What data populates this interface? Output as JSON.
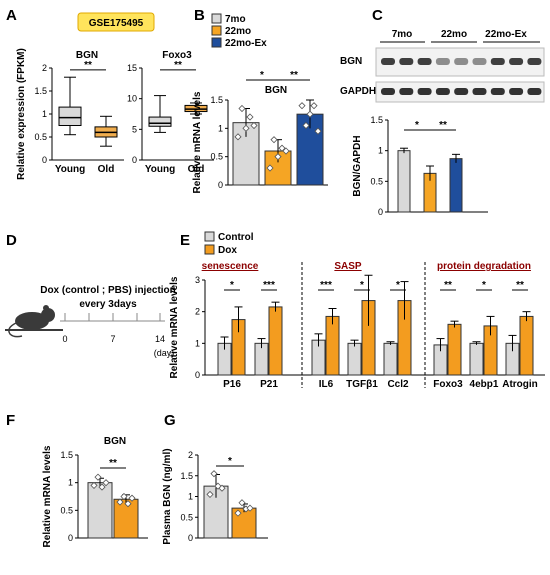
{
  "panels": {
    "A": "A",
    "B": "B",
    "C": "C",
    "D": "D",
    "E": "E",
    "F": "F",
    "G": "G"
  },
  "colors": {
    "young_box": "#d9d9d9",
    "old_box": "#f0ad4e",
    "mo7": "#d9d9d9",
    "mo22": "#f5a524",
    "ex": "#1f4e9c",
    "control": "#d9d9d9",
    "dox": "#f39c1f",
    "dataset_bg": "#ffe45c",
    "dataset_border": "#e0a800"
  },
  "chart_data": [
    {
      "panel": "A",
      "type": "box",
      "dataset": "GSE175495",
      "ylabel": "Relative expression (FPKM)",
      "subcharts": [
        {
          "title": "BGN",
          "categories": [
            "Young",
            "Old"
          ],
          "ylim": [
            0,
            2
          ],
          "yticks": [
            0,
            0.5,
            1,
            1.5,
            2
          ],
          "boxes": [
            {
              "min": 0.55,
              "q1": 0.75,
              "median": 0.92,
              "q3": 1.15,
              "max": 1.8
            },
            {
              "min": 0.3,
              "q1": 0.5,
              "median": 0.6,
              "q3": 0.72,
              "max": 0.95
            }
          ],
          "significance": "**"
        },
        {
          "title": "Foxo3",
          "categories": [
            "Young",
            "Old"
          ],
          "ylim": [
            0,
            15
          ],
          "yticks": [
            0,
            5,
            10,
            15
          ],
          "boxes": [
            {
              "min": 4.5,
              "q1": 5.5,
              "median": 6.0,
              "q3": 7.0,
              "max": 10.5
            },
            {
              "min": 7.5,
              "q1": 7.9,
              "median": 8.3,
              "q3": 8.9,
              "max": 9.3
            }
          ],
          "significance": "**"
        }
      ]
    },
    {
      "panel": "B",
      "type": "bar",
      "title": "BGN",
      "legend": [
        "7mo",
        "22mo",
        "22mo-Ex"
      ],
      "categories": [
        "7mo",
        "22mo",
        "22mo-Ex"
      ],
      "values": [
        1.1,
        0.6,
        1.25
      ],
      "errors": [
        0.25,
        0.2,
        0.25
      ],
      "points": [
        [
          0.85,
          1.35,
          1.0,
          1.2,
          1.05
        ],
        [
          0.3,
          0.8,
          0.5,
          0.65,
          0.6
        ],
        [
          1.4,
          1.05,
          1.25,
          1.4,
          0.95
        ]
      ],
      "ylabel": "Relative mRNA levels",
      "ylim": [
        0,
        1.5
      ],
      "yticks": [
        0,
        0.5,
        1,
        1.5
      ],
      "significance": [
        {
          "from": 0,
          "to": 1,
          "label": "*"
        },
        {
          "from": 1,
          "to": 2,
          "label": "**"
        }
      ]
    },
    {
      "panel": "C",
      "type": "bar",
      "blot_groups": [
        "7mo",
        "22mo",
        "22mo-Ex"
      ],
      "blot_rows": [
        "BGN",
        "GAPDH"
      ],
      "categories": [
        "7mo",
        "22mo",
        "22mo-Ex"
      ],
      "values": [
        1.0,
        0.63,
        0.87
      ],
      "errors": [
        0.04,
        0.12,
        0.07
      ],
      "ylabel": "BGN/GAPDH",
      "ylim": [
        0,
        1.5
      ],
      "yticks": [
        0,
        0.5,
        1,
        1.5
      ],
      "significance": [
        {
          "from": 0,
          "to": 1,
          "label": "*"
        },
        {
          "from": 1,
          "to": 2,
          "label": "**"
        }
      ]
    },
    {
      "panel": "D",
      "type": "timeline",
      "title_line1": "Dox (control ; PBS) injection",
      "title_line2": "every 3days",
      "ticks": [
        "0",
        "7",
        "14"
      ],
      "unit": "(day)"
    },
    {
      "panel": "E",
      "type": "bar",
      "legend": [
        "Control",
        "Dox"
      ],
      "groups": [
        {
          "label": "senescence",
          "genes": [
            "P16",
            "P21"
          ]
        },
        {
          "label": "SASP",
          "genes": [
            "IL6",
            "TGFβ1",
            "Ccl2"
          ]
        },
        {
          "label": "protein degradation",
          "genes": [
            "Foxo3",
            "4ebp1",
            "Atrogin"
          ]
        }
      ],
      "categories": [
        "P16",
        "P21",
        "IL6",
        "TGFβ1",
        "Ccl2",
        "Foxo3",
        "4ebp1",
        "Atrogin"
      ],
      "series": [
        {
          "name": "Control",
          "values": [
            1.0,
            1.0,
            1.1,
            1.0,
            1.0,
            0.95,
            1.0,
            1.0
          ],
          "errors": [
            0.2,
            0.15,
            0.2,
            0.1,
            0.05,
            0.2,
            0.05,
            0.25
          ]
        },
        {
          "name": "Dox",
          "values": [
            1.75,
            2.15,
            1.85,
            2.35,
            2.35,
            1.6,
            1.55,
            1.85
          ],
          "errors": [
            0.4,
            0.15,
            0.25,
            0.8,
            0.6,
            0.1,
            0.3,
            0.15
          ]
        }
      ],
      "significance": [
        "*",
        "***",
        "***",
        "*",
        "*",
        "**",
        "*",
        "**"
      ],
      "ylabel": "Relative mRNA levels",
      "ylim": [
        0,
        3
      ],
      "yticks": [
        0,
        1,
        2,
        3
      ]
    },
    {
      "panel": "F",
      "type": "bar",
      "title": "BGN",
      "categories": [
        "Control",
        "Dox"
      ],
      "values": [
        1.0,
        0.7
      ],
      "errors": [
        0.08,
        0.08
      ],
      "points": [
        [
          0.95,
          1.1,
          0.92,
          1.0
        ],
        [
          0.65,
          0.75,
          0.62,
          0.72
        ]
      ],
      "ylabel": "Relative mRNA levels",
      "ylim": [
        0,
        1.5
      ],
      "yticks": [
        0,
        0.5,
        1,
        1.5
      ],
      "significance": "**"
    },
    {
      "panel": "G",
      "type": "bar",
      "categories": [
        "Control",
        "Dox"
      ],
      "values": [
        1.25,
        0.72
      ],
      "errors": [
        0.28,
        0.1
      ],
      "points": [
        [
          1.05,
          1.55,
          1.25,
          1.2
        ],
        [
          0.6,
          0.85,
          0.7,
          0.72
        ]
      ],
      "ylabel": "Plasma BGN (ng/ml)",
      "ylim": [
        0,
        2
      ],
      "yticks": [
        0,
        0.5,
        1,
        1.5,
        2
      ],
      "significance": "*"
    }
  ]
}
